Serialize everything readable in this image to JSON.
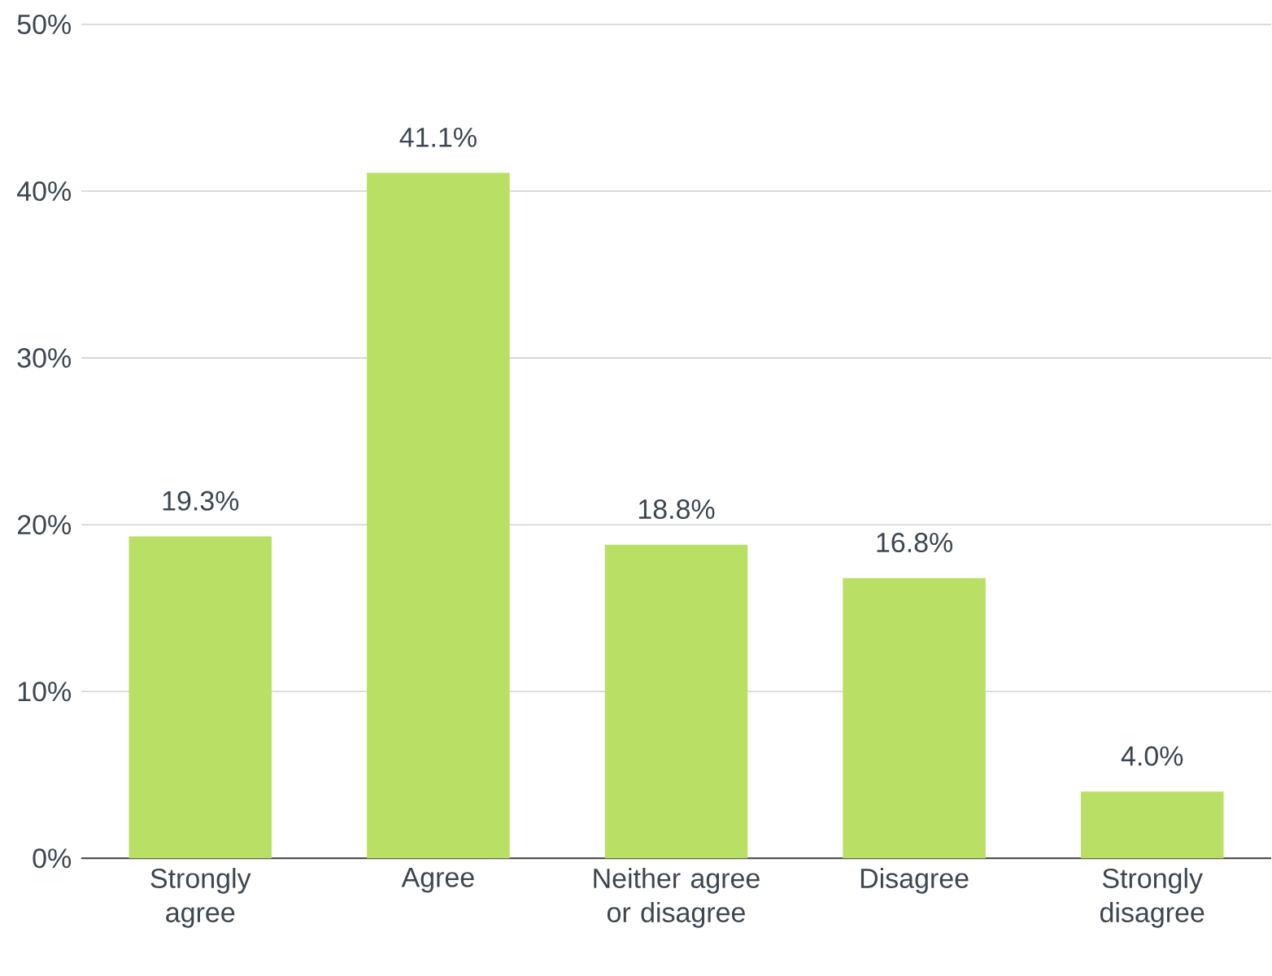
{
  "chart_data": {
    "type": "bar",
    "categories": [
      "Strongly agree",
      "Agree",
      "Neither agree or disagree",
      "Disagree",
      "Strongly disagree"
    ],
    "values": [
      19.3,
      41.1,
      18.8,
      16.8,
      4.0
    ],
    "value_labels": [
      "19.3%",
      "41.1%",
      "18.8%",
      "16.8%",
      "4.0%"
    ],
    "color": "#b9e065",
    "ylim": [
      0,
      50
    ],
    "yticks": [
      {
        "value": 0,
        "label": "0%"
      },
      {
        "value": 10,
        "label": "10%"
      },
      {
        "value": 20,
        "label": "20%"
      },
      {
        "value": 30,
        "label": "30%"
      },
      {
        "value": 40,
        "label": "40%"
      },
      {
        "value": 50,
        "label": "50%"
      }
    ],
    "grid": "y"
  }
}
